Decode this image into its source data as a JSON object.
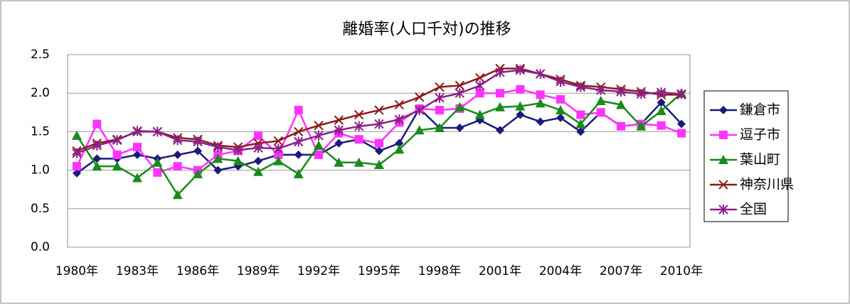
{
  "chart_data": {
    "type": "line",
    "title": "離婚率(人口千対)の推移",
    "categories": [
      "1980年",
      null,
      null,
      "1983年",
      null,
      null,
      "1986年",
      null,
      null,
      "1989年",
      null,
      null,
      "1992年",
      null,
      null,
      "1995年",
      null,
      null,
      "1998年",
      null,
      null,
      "2001年",
      null,
      null,
      "2004年",
      null,
      null,
      "2007年",
      null,
      null,
      "2010年"
    ],
    "ylim": [
      0,
      2.5
    ],
    "yticks": [
      {
        "value": 0,
        "label": "0.0"
      },
      0.5,
      {
        "value": 1,
        "label": "1.0"
      },
      1.5,
      {
        "value": 2,
        "label": "2.0"
      },
      2.5
    ],
    "grid": true,
    "legend": "right",
    "series": [
      {
        "name": "鎌倉市",
        "color": "#1a1a7a",
        "marker": "diamond",
        "values": [
          0.96,
          1.15,
          1.15,
          1.2,
          1.15,
          1.2,
          1.25,
          1.0,
          1.05,
          1.12,
          1.2,
          1.2,
          1.2,
          1.35,
          1.4,
          1.25,
          1.35,
          1.8,
          1.55,
          1.55,
          1.65,
          1.52,
          1.72,
          1.63,
          1.68,
          1.5,
          1.75,
          1.57,
          1.6,
          1.88,
          1.6
        ]
      },
      {
        "name": "逗子市",
        "color": "#ff33ff",
        "marker": "square",
        "values": [
          1.05,
          1.6,
          1.2,
          1.3,
          0.97,
          1.05,
          1.0,
          1.2,
          1.25,
          1.45,
          1.2,
          1.78,
          1.2,
          1.48,
          1.4,
          1.35,
          1.62,
          1.8,
          1.78,
          1.8,
          2.0,
          2.0,
          2.05,
          1.98,
          1.92,
          1.72,
          1.75,
          1.57,
          1.6,
          1.58,
          1.48
        ]
      },
      {
        "name": "葉山町",
        "color": "#1a8a1a",
        "marker": "triangle",
        "values": [
          1.45,
          1.05,
          1.05,
          0.9,
          1.1,
          0.68,
          0.95,
          1.15,
          1.12,
          0.98,
          1.12,
          0.95,
          1.32,
          1.1,
          1.1,
          1.07,
          1.27,
          1.52,
          1.55,
          1.82,
          1.72,
          1.82,
          1.83,
          1.87,
          1.78,
          1.6,
          1.9,
          1.85,
          1.57,
          1.77,
          2.0
        ]
      },
      {
        "name": "神奈川県",
        "color": "#8b1a1a",
        "marker": "x",
        "values": [
          1.25,
          1.35,
          1.4,
          1.5,
          1.5,
          1.42,
          1.4,
          1.32,
          1.3,
          1.35,
          1.38,
          1.5,
          1.58,
          1.65,
          1.72,
          1.78,
          1.85,
          1.95,
          2.08,
          2.1,
          2.2,
          2.32,
          2.32,
          2.25,
          2.18,
          2.1,
          2.08,
          2.05,
          2.02,
          1.98,
          1.98
        ]
      },
      {
        "name": "全国",
        "color": "#8b1f8b",
        "marker": "star",
        "values": [
          1.22,
          1.32,
          1.39,
          1.51,
          1.5,
          1.39,
          1.37,
          1.3,
          1.26,
          1.29,
          1.28,
          1.37,
          1.45,
          1.52,
          1.57,
          1.6,
          1.66,
          1.78,
          1.94,
          2.0,
          2.1,
          2.27,
          2.3,
          2.25,
          2.15,
          2.08,
          2.04,
          2.02,
          1.99,
          2.01,
          1.99
        ]
      }
    ]
  }
}
